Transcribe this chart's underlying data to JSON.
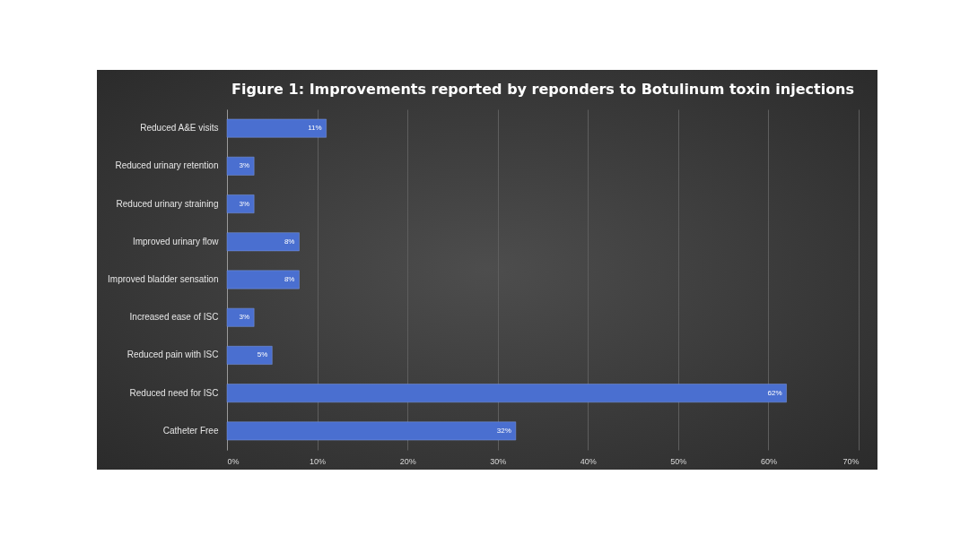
{
  "chart_data": {
    "type": "bar",
    "orientation": "horizontal",
    "title": "Figure 1: Improvements reported by reponders to Botulinum toxin injections",
    "categories": [
      "Reduced A&E visits",
      "Reduced urinary retention",
      "Reduced urinary straining",
      "Improved urinary flow",
      "Improved bladder sensation",
      "Increased ease of ISC",
      "Reduced pain with ISC",
      "Reduced need for ISC",
      "Catheter Free"
    ],
    "values": [
      11,
      3,
      3,
      8,
      8,
      3,
      5,
      62,
      32
    ],
    "value_labels": [
      "11%",
      "3%",
      "3%",
      "8%",
      "8%",
      "3%",
      "5%",
      "62%",
      "32%"
    ],
    "color": "#4a6fd0",
    "xlim": [
      0,
      70
    ],
    "xticks": [
      {
        "value": 0,
        "label": "0%"
      },
      {
        "value": 10,
        "label": "10%"
      },
      {
        "value": 20,
        "label": "20%"
      },
      {
        "value": 30,
        "label": "30%"
      },
      {
        "value": 40,
        "label": "40%"
      },
      {
        "value": 50,
        "label": "50%"
      },
      {
        "value": 60,
        "label": "60%"
      },
      {
        "value": 70,
        "label": "70%"
      }
    ],
    "grid": "x"
  }
}
